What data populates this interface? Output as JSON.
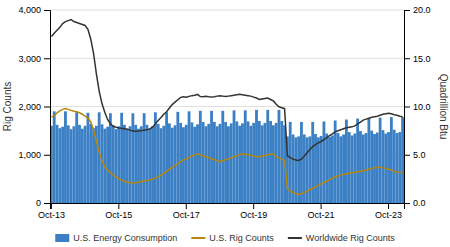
{
  "chart_data": {
    "type": "bar",
    "y_label": "Rig Counts",
    "y2_label": "Quadrillion Btu",
    "categories": [
      "Oct-13",
      null,
      null,
      null,
      null,
      null,
      null,
      null,
      null,
      null,
      null,
      null,
      null,
      null,
      null,
      null,
      null,
      null,
      null,
      null,
      null,
      null,
      null,
      null,
      "Oct-15",
      null,
      null,
      null,
      null,
      null,
      null,
      null,
      null,
      null,
      null,
      null,
      null,
      null,
      null,
      null,
      null,
      null,
      null,
      null,
      null,
      null,
      null,
      null,
      "Oct-17",
      null,
      null,
      null,
      null,
      null,
      null,
      null,
      null,
      null,
      null,
      null,
      null,
      null,
      null,
      null,
      null,
      null,
      null,
      null,
      null,
      null,
      null,
      null,
      "Oct-19",
      null,
      null,
      null,
      null,
      null,
      null,
      null,
      null,
      null,
      null,
      null,
      null,
      null,
      null,
      null,
      null,
      null,
      null,
      null,
      null,
      null,
      null,
      null,
      "Oct-21",
      null,
      null,
      null,
      null,
      null,
      null,
      null,
      null,
      null,
      null,
      null,
      null,
      null,
      null,
      null,
      null,
      null,
      null,
      null,
      null,
      null,
      null,
      null,
      "Oct-23",
      null,
      null,
      null,
      null,
      null
    ],
    "ylim": [
      0,
      4000
    ],
    "yticks": [
      0,
      {
        "value": 1000,
        "label": "1,000"
      },
      {
        "value": 2000,
        "label": "2,000"
      },
      {
        "value": 3000,
        "label": "3,000"
      },
      {
        "value": 4000,
        "label": "4,000"
      }
    ],
    "y2lim": [
      0,
      20.0
    ],
    "y2ticks": [
      {
        "value": 0.0,
        "label": "0.0"
      },
      {
        "value": 5.0,
        "label": "5.0"
      },
      {
        "value": 10.0,
        "label": "10.0"
      },
      {
        "value": 15.0,
        "label": "15.0"
      },
      {
        "value": 20.0,
        "label": "20.0"
      }
    ],
    "grid": true,
    "legend": "bottom",
    "series": [
      {
        "name": "U.S. Energy Consumption",
        "type": "bar",
        "color": "#3B7FC4",
        "values": [
          1600,
          1900,
          1620,
          1550,
          1580,
          1900,
          1610,
          1530,
          1590,
          1880,
          1620,
          1540,
          1600,
          1870,
          1640,
          1550,
          1600,
          1880,
          1630,
          1540,
          1580,
          1860,
          1610,
          1530,
          1590,
          1870,
          1620,
          1540,
          1590,
          1860,
          1620,
          1540,
          1590,
          1860,
          1620,
          1540,
          1590,
          1880,
          1640,
          1550,
          1600,
          1880,
          1650,
          1560,
          1610,
          1890,
          1660,
          1570,
          1620,
          1900,
          1670,
          1580,
          1630,
          1910,
          1680,
          1590,
          1640,
          1910,
          1680,
          1590,
          1640,
          1910,
          1680,
          1590,
          1650,
          1920,
          1690,
          1600,
          1650,
          1920,
          1690,
          1600,
          1660,
          1930,
          1700,
          1610,
          1660,
          1930,
          1700,
          1610,
          1660,
          1930,
          1700,
          1610,
          1380,
          1680,
          1420,
          1360,
          1380,
          1680,
          1420,
          1360,
          1380,
          1680,
          1430,
          1360,
          1390,
          1690,
          1440,
          1370,
          1400,
          1710,
          1450,
          1380,
          1420,
          1730,
          1470,
          1400,
          1440,
          1750,
          1490,
          1420,
          1450,
          1760,
          1500,
          1430,
          1460,
          1770,
          1510,
          1440,
          1470,
          1780,
          1520,
          1450,
          1470,
          1780
        ]
      },
      {
        "name": "U.S. Rig Counts",
        "type": "line",
        "color": "#B8860B",
        "values": [
          1780,
          1810,
          1870,
          1910,
          1940,
          1960,
          1940,
          1920,
          1900,
          1890,
          1870,
          1840,
          1800,
          1760,
          1680,
          1520,
          1280,
          1050,
          870,
          750,
          680,
          630,
          580,
          540,
          500,
          470,
          450,
          435,
          420,
          415,
          420,
          430,
          445,
          455,
          465,
          478,
          495,
          515,
          545,
          575,
          615,
          655,
          698,
          738,
          775,
          815,
          855,
          895,
          915,
          945,
          975,
          998,
          1018,
          998,
          978,
          958,
          938,
          918,
          898,
          875,
          855,
          875,
          895,
          915,
          935,
          958,
          978,
          998,
          1018,
          1008,
          998,
          988,
          975,
          965,
          955,
          972,
          985,
          998,
          1008,
          1018,
          955,
          935,
          915,
          880,
          290,
          255,
          215,
          195,
          178,
          195,
          215,
          245,
          275,
          305,
          335,
          365,
          395,
          425,
          455,
          485,
          515,
          538,
          558,
          578,
          598,
          608,
          618,
          628,
          638,
          648,
          658,
          668,
          678,
          698,
          718,
          728,
          738,
          748,
          728,
          718,
          698,
          688,
          655,
          645,
          635,
          625
        ]
      },
      {
        "name": "Worldwide Rig Counts",
        "type": "line",
        "color": "#333333",
        "values": [
          3450,
          3520,
          3580,
          3640,
          3720,
          3760,
          3780,
          3800,
          3760,
          3740,
          3720,
          3700,
          3680,
          3600,
          3400,
          3100,
          2680,
          2320,
          2060,
          1880,
          1730,
          1640,
          1590,
          1570,
          1555,
          1550,
          1540,
          1530,
          1510,
          1490,
          1485,
          1490,
          1500,
          1510,
          1520,
          1535,
          1570,
          1640,
          1710,
          1770,
          1840,
          1890,
          1970,
          2040,
          2090,
          2140,
          2190,
          2200,
          2190,
          2210,
          2225,
          2235,
          2250,
          2205,
          2200,
          2210,
          2200,
          2195,
          2200,
          2215,
          2225,
          2215,
          2205,
          2215,
          2225,
          2235,
          2245,
          2255,
          2245,
          2235,
          2225,
          2215,
          2195,
          2175,
          2145,
          2155,
          2165,
          2175,
          2145,
          2115,
          2045,
          1995,
          1975,
          1955,
          980,
          940,
          910,
          890,
          880,
          910,
          970,
          1040,
          1110,
          1170,
          1210,
          1245,
          1275,
          1315,
          1355,
          1395,
          1435,
          1475,
          1498,
          1518,
          1538,
          1558,
          1568,
          1578,
          1598,
          1638,
          1678,
          1718,
          1738,
          1758,
          1778,
          1788,
          1798,
          1818,
          1838,
          1848,
          1858,
          1848,
          1828,
          1818,
          1798,
          1788
        ]
      }
    ]
  }
}
